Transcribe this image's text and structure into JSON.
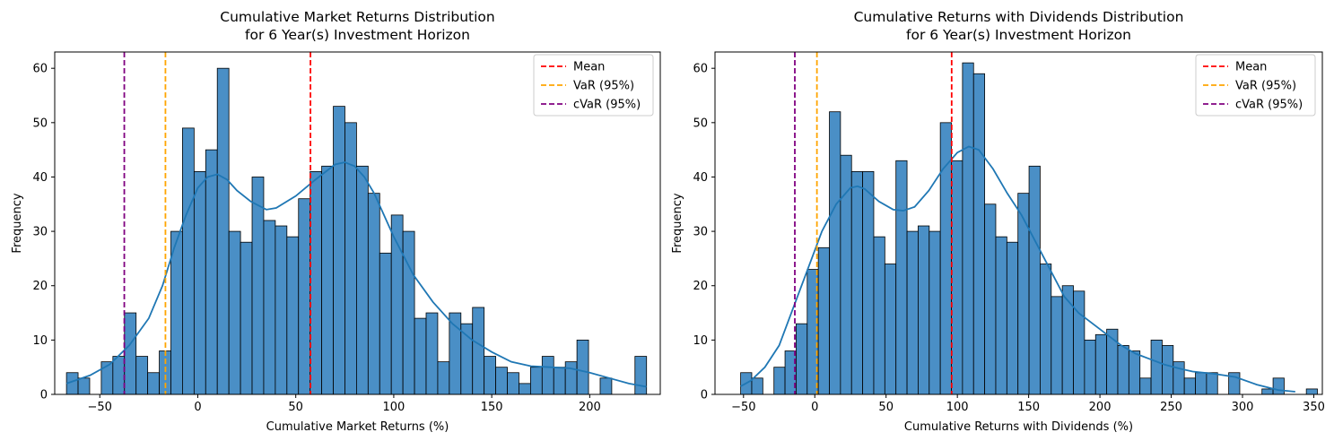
{
  "chart_data": [
    {
      "type": "bar",
      "title": "Cumulative Market Returns Distribution\nfor 6 Year(s) Investment Horizon",
      "xlabel": "Cumulative Market Returns (%)",
      "ylabel": "Frequency",
      "xlim": [
        -73,
        236
      ],
      "ylim": [
        0,
        63
      ],
      "xticks": [
        -50,
        0,
        50,
        100,
        150,
        200
      ],
      "yticks": [
        0,
        10,
        20,
        30,
        40,
        50,
        60
      ],
      "bin_start": -67.0,
      "bin_width": 5.92,
      "counts": [
        4,
        3,
        0,
        6,
        7,
        15,
        7,
        4,
        8,
        30,
        49,
        41,
        45,
        60,
        30,
        28,
        40,
        32,
        31,
        29,
        36,
        41,
        42,
        53,
        50,
        42,
        37,
        26,
        33,
        30,
        14,
        15,
        6,
        15,
        13,
        16,
        7,
        5,
        4,
        2,
        5,
        7,
        5,
        6,
        10,
        0,
        3,
        0,
        0,
        7
      ],
      "kde": [
        [
          -67,
          2
        ],
        [
          -55,
          3.5
        ],
        [
          -45,
          5.5
        ],
        [
          -35,
          9
        ],
        [
          -25,
          14
        ],
        [
          -18,
          20
        ],
        [
          -12,
          27
        ],
        [
          -6,
          33
        ],
        [
          0,
          38
        ],
        [
          5,
          40
        ],
        [
          10,
          40.5
        ],
        [
          15,
          39.5
        ],
        [
          20,
          37.5
        ],
        [
          27,
          35.5
        ],
        [
          35,
          34
        ],
        [
          40,
          34.3
        ],
        [
          50,
          36.5
        ],
        [
          60,
          39.5
        ],
        [
          70,
          42.3
        ],
        [
          75,
          42.7
        ],
        [
          80,
          42
        ],
        [
          85,
          40
        ],
        [
          90,
          37
        ],
        [
          95,
          33
        ],
        [
          100,
          29
        ],
        [
          105,
          25.5
        ],
        [
          110,
          22
        ],
        [
          120,
          17
        ],
        [
          130,
          13
        ],
        [
          140,
          10
        ],
        [
          150,
          7.8
        ],
        [
          160,
          6
        ],
        [
          170,
          5.2
        ],
        [
          180,
          5
        ],
        [
          190,
          4.8
        ],
        [
          200,
          4
        ],
        [
          210,
          3
        ],
        [
          220,
          2
        ],
        [
          229,
          1.4
        ]
      ],
      "vlines": [
        {
          "label": "Mean",
          "x": 57.5,
          "color": "#ff0000"
        },
        {
          "label": "VaR (95%)",
          "x": -16.5,
          "color": "#ffa500"
        },
        {
          "label": "cVaR (95%)",
          "x": -37.5,
          "color": "#800080"
        }
      ],
      "legend_position": "top-right",
      "bar_color": "#4a8fc6",
      "kde_color": "#1f77b4"
    },
    {
      "type": "bar",
      "title": "Cumulative Returns with Dividends Distribution\nfor 6 Year(s) Investment Horizon",
      "xlabel": "Cumulative Returns with Dividends (%)",
      "ylabel": "Frequency",
      "xlim": [
        -70,
        356
      ],
      "ylim": [
        0,
        63
      ],
      "xticks": [
        -50,
        0,
        50,
        100,
        150,
        200,
        250,
        300,
        350
      ],
      "yticks": [
        0,
        10,
        20,
        30,
        40,
        50,
        60
      ],
      "bin_start": -52.0,
      "bin_width": 7.78,
      "counts": [
        4,
        3,
        0,
        5,
        8,
        13,
        23,
        27,
        52,
        44,
        41,
        41,
        29,
        24,
        43,
        30,
        31,
        30,
        50,
        43,
        61,
        59,
        35,
        29,
        28,
        37,
        42,
        24,
        18,
        20,
        19,
        10,
        11,
        12,
        9,
        8,
        3,
        10,
        9,
        6,
        3,
        4,
        4,
        0,
        4,
        0,
        0,
        1,
        3,
        0,
        0,
        1
      ],
      "kde": [
        [
          -52,
          1.5
        ],
        [
          -45,
          2.5
        ],
        [
          -35,
          5
        ],
        [
          -25,
          9
        ],
        [
          -15,
          16
        ],
        [
          -5,
          23
        ],
        [
          5,
          30
        ],
        [
          15,
          35
        ],
        [
          25,
          38
        ],
        [
          30,
          38.3
        ],
        [
          35,
          37.8
        ],
        [
          45,
          35.5
        ],
        [
          55,
          34
        ],
        [
          62,
          33.8
        ],
        [
          70,
          34.5
        ],
        [
          80,
          37.5
        ],
        [
          90,
          41.5
        ],
        [
          100,
          44.5
        ],
        [
          108,
          45.6
        ],
        [
          115,
          45
        ],
        [
          125,
          41.5
        ],
        [
          135,
          37
        ],
        [
          145,
          33
        ],
        [
          155,
          28
        ],
        [
          165,
          23
        ],
        [
          175,
          18
        ],
        [
          185,
          15
        ],
        [
          195,
          13
        ],
        [
          205,
          11
        ],
        [
          215,
          9
        ],
        [
          225,
          7.5
        ],
        [
          235,
          6.5
        ],
        [
          245,
          5.5
        ],
        [
          255,
          4.8
        ],
        [
          265,
          4.2
        ],
        [
          280,
          3.8
        ],
        [
          295,
          3.2
        ],
        [
          310,
          1.8
        ],
        [
          325,
          0.8
        ],
        [
          337,
          0.5
        ]
      ],
      "vlines": [
        {
          "label": "Mean",
          "x": 96,
          "color": "#ff0000"
        },
        {
          "label": "VaR (95%)",
          "x": 1.5,
          "color": "#ffa500"
        },
        {
          "label": "cVaR (95%)",
          "x": -14,
          "color": "#800080"
        }
      ],
      "legend_position": "top-right",
      "bar_color": "#4a8fc6",
      "kde_color": "#1f77b4"
    }
  ]
}
